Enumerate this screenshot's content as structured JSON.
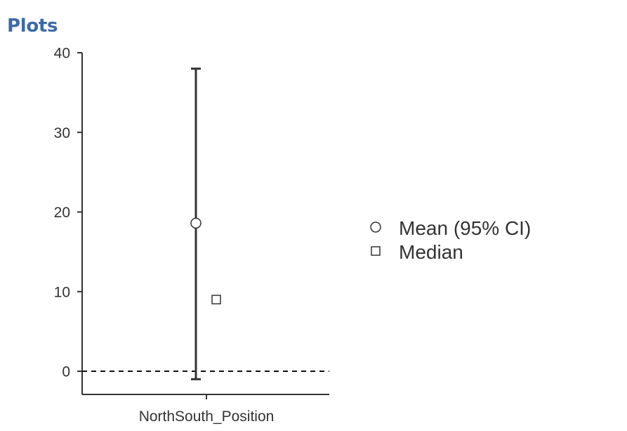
{
  "header": {
    "title": "Plots"
  },
  "chart_data": {
    "type": "errorbar",
    "xlabel": "",
    "ylabel": "",
    "categories": [
      "NorthSouth_Position"
    ],
    "ylim": [
      -3,
      40
    ],
    "yticks": [
      0,
      10,
      20,
      30,
      40
    ],
    "reference_line": {
      "y": 0,
      "style": "dashed"
    },
    "series": [
      {
        "name": "Mean (95% CI)",
        "marker": "circle",
        "values": [
          18.6
        ],
        "ci_lower": [
          -1
        ],
        "ci_upper": [
          38
        ]
      },
      {
        "name": "Median",
        "marker": "square",
        "values": [
          9
        ]
      }
    ],
    "legend_position": "right",
    "grid": false,
    "colors": {
      "axis": "#333333",
      "marker_fill": "#ffffff",
      "title": "#3e6aa6"
    }
  }
}
